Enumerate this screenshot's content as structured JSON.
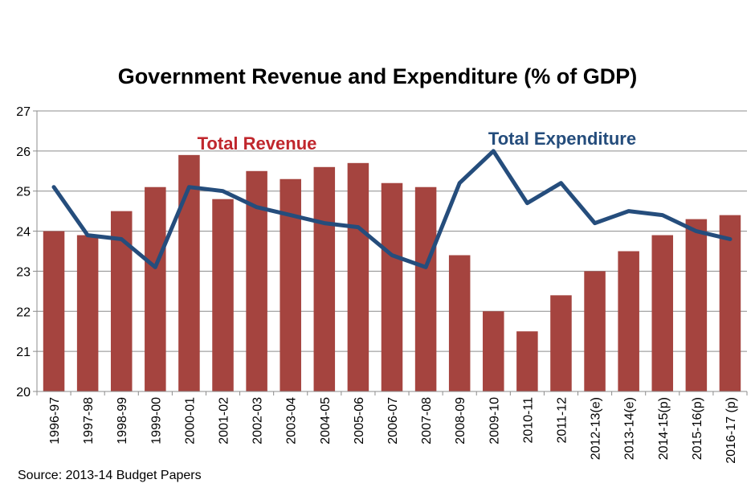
{
  "chart_data": {
    "type": "bar",
    "title": "Government Revenue and Expenditure (% of GDP)",
    "categories": [
      "1996-97",
      "1997-98",
      "1998-99",
      "1999-00",
      "2000-01",
      "2001-02",
      "2002-03",
      "2003-04",
      "2004-05",
      "2005-06",
      "2006-07",
      "2007-08",
      "2008-09",
      "2009-10",
      "2010-11",
      "2011-12",
      "2012-13(e)",
      "2013-14(e)",
      "2014-15(p)",
      "2015-16(p)",
      "2016-17 (p)"
    ],
    "series": [
      {
        "name": "Total Revenue",
        "type": "bar",
        "color": "#A5443F",
        "values": [
          24.0,
          23.9,
          24.5,
          25.1,
          25.9,
          24.8,
          25.5,
          25.3,
          25.6,
          25.7,
          25.2,
          25.1,
          23.4,
          22.0,
          21.5,
          22.4,
          23.0,
          23.5,
          23.9,
          24.3,
          24.4
        ]
      },
      {
        "name": "Total Expenditure",
        "type": "line",
        "color": "#254D7C",
        "values": [
          25.1,
          23.9,
          23.8,
          23.1,
          25.1,
          25.0,
          24.6,
          24.4,
          24.2,
          24.1,
          23.4,
          23.1,
          25.2,
          26.0,
          24.7,
          25.2,
          24.2,
          24.5,
          24.4,
          24.0,
          23.8
        ]
      }
    ],
    "ylim": [
      20,
      27
    ],
    "yticks": [
      20,
      21,
      22,
      23,
      24,
      25,
      26,
      27
    ],
    "xlabel": "",
    "ylabel": "",
    "grid": true,
    "legend": "none",
    "annotations": [
      {
        "text": "Total Revenue",
        "series": "Total Revenue",
        "near_category": "2001-02",
        "color": "#C0272D"
      },
      {
        "text": "Total Expenditure",
        "series": "Total Expenditure",
        "near_category": "2011-12",
        "color": "#254D7C"
      }
    ]
  },
  "source_note": "Source: 2013-14 Budget Papers"
}
